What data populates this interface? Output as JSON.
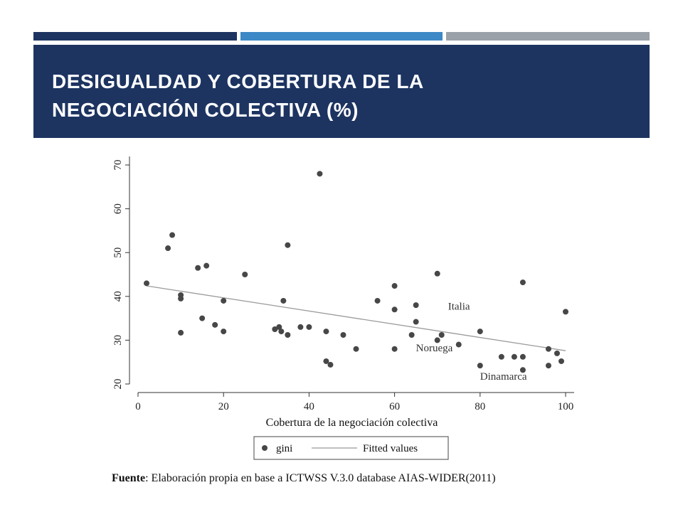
{
  "colors": {
    "navy": "#1d3461",
    "blue": "#3d88c6",
    "gray": "#9aa1a8",
    "point": "#474747",
    "fit_line": "#9a9a9a",
    "axis": "#333333"
  },
  "slide": {
    "title": "DESIGUALDAD Y COBERTURA DE LA\nNEGOCIACIÓN COLECTIVA (%)"
  },
  "source": {
    "label": "Fuente",
    "text": ": Elaboración propia en base a ICTWSS V.3.0 database AIAS-WIDER(2011)"
  },
  "chart_data": {
    "type": "scatter",
    "xlabel": "Cobertura de la negociación colectiva",
    "ylabel": "",
    "xlim": [
      0,
      100
    ],
    "ylim": [
      20,
      70
    ],
    "xticks": [
      0,
      20,
      40,
      60,
      80,
      100
    ],
    "yticks": [
      20,
      30,
      40,
      50,
      60,
      70
    ],
    "grid": false,
    "legend_position": "bottom",
    "series": [
      {
        "name": "gini",
        "type": "scatter",
        "x": [
          2,
          7,
          8,
          10,
          10,
          10,
          14,
          15,
          16,
          18,
          20,
          20,
          25,
          32,
          33,
          33.5,
          34,
          35,
          35,
          38,
          40,
          42.5,
          44,
          44,
          45,
          48,
          51,
          56,
          60,
          60,
          60,
          64,
          65,
          65,
          70,
          70,
          71,
          75,
          80,
          80,
          85,
          88,
          90,
          90,
          90,
          96,
          96,
          98,
          99,
          100
        ],
        "y": [
          43,
          51,
          54,
          40.3,
          39.5,
          31.7,
          46.5,
          35,
          47,
          33.5,
          32,
          39,
          45,
          32.5,
          33,
          32,
          39,
          51.7,
          31.2,
          33,
          33,
          68,
          32,
          25.2,
          24.4,
          31.2,
          28,
          39,
          42.4,
          37,
          28,
          31.2,
          38,
          34.2,
          30,
          45.2,
          31.2,
          29,
          32,
          24.2,
          26.2,
          26.2,
          43.2,
          26.2,
          23.2,
          28,
          24.2,
          27,
          25.2,
          36.5
        ]
      },
      {
        "name": "Fitted values",
        "type": "line",
        "x": [
          2,
          100
        ],
        "y": [
          42.4,
          27.6
        ]
      }
    ],
    "annotations": [
      {
        "text": "Italia",
        "x": 72.5,
        "y": 37
      },
      {
        "text": "Noruega",
        "x": 65,
        "y": 27.5
      },
      {
        "text": "Dinamarca",
        "x": 80,
        "y": 21
      }
    ]
  }
}
